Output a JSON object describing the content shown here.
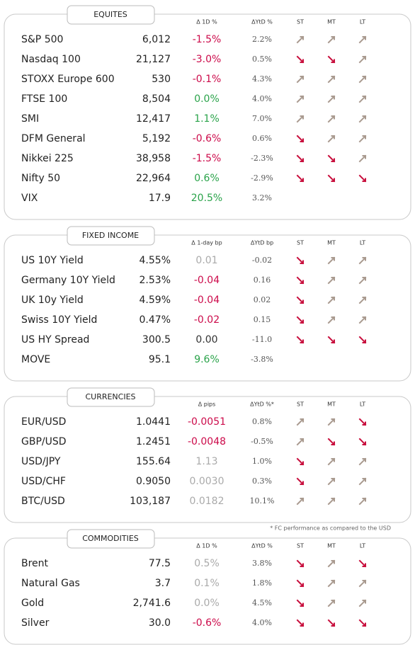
{
  "sections": [
    {
      "title": "EQUITES",
      "headers": [
        "Δ 1D %",
        "ΔYtD %",
        "ST",
        "MT",
        "LT"
      ],
      "rows": [
        {
          "name": "S&P 500",
          "value": "6,012",
          "change": "-1.5%",
          "ytd": "2.2%",
          "tone": "negative",
          "trend": [
            "up",
            "up",
            "up"
          ]
        },
        {
          "name": "Nasdaq 100",
          "value": "21,127",
          "change": "-3.0%",
          "ytd": "0.5%",
          "tone": "negative",
          "trend": [
            "down",
            "down",
            "up"
          ]
        },
        {
          "name": "STOXX Europe 600",
          "value": "530",
          "change": "-0.1%",
          "ytd": "4.3%",
          "tone": "negative",
          "trend": [
            "up",
            "up",
            "up"
          ]
        },
        {
          "name": "FTSE 100",
          "value": "8,504",
          "change": "0.0%",
          "ytd": "4.0%",
          "tone": "positive",
          "trend": [
            "up",
            "up",
            "up"
          ]
        },
        {
          "name": "SMI",
          "value": "12,417",
          "change": "1.1%",
          "ytd": "7.0%",
          "tone": "positive",
          "trend": [
            "up",
            "up",
            "up"
          ]
        },
        {
          "name": "DFM General",
          "value": "5,192",
          "change": "-0.6%",
          "ytd": "0.6%",
          "tone": "negative",
          "trend": [
            "down",
            "up",
            "up"
          ]
        },
        {
          "name": "Nikkei 225",
          "value": "38,958",
          "change": "-1.5%",
          "ytd": "-2.3%",
          "tone": "negative",
          "trend": [
            "down",
            "down",
            "up"
          ]
        },
        {
          "name": "Nifty  50",
          "value": "22,964",
          "change": "0.6%",
          "ytd": "-2.9%",
          "tone": "positive",
          "trend": [
            "down",
            "down",
            "down"
          ]
        },
        {
          "name": "VIX",
          "value": "17.9",
          "change": "20.5%",
          "ytd": "3.2%",
          "tone": "positive",
          "trend": [
            null,
            null,
            null
          ]
        }
      ]
    },
    {
      "title": "FIXED INCOME",
      "headers": [
        "Δ 1-day bp",
        "ΔYtD bp",
        "ST",
        "MT",
        "LT"
      ],
      "rows": [
        {
          "name": "US 10Y Yield",
          "value": "4.55%",
          "change": "0.01",
          "ytd": "-0.02",
          "tone": "neutral",
          "trend": [
            "down",
            "up",
            "up"
          ]
        },
        {
          "name": "Germany 10Y Yield",
          "value": "2.53%",
          "change": "-0.04",
          "ytd": "0.16",
          "tone": "negative",
          "trend": [
            "down",
            "up",
            "up"
          ]
        },
        {
          "name": "UK 10y Yield",
          "value": "4.59%",
          "change": "-0.04",
          "ytd": "0.02",
          "tone": "negative",
          "trend": [
            "down",
            "up",
            "up"
          ]
        },
        {
          "name": "Swiss 10Y Yield",
          "value": "0.47%",
          "change": "-0.02",
          "ytd": "0.15",
          "tone": "negative",
          "trend": [
            "down",
            "up",
            "up"
          ]
        },
        {
          "name": "US HY Spread",
          "value": "300.5",
          "change": "0.00",
          "ytd": "-11.0",
          "tone": "flat",
          "trend": [
            "down",
            "down",
            "down"
          ]
        },
        {
          "name": "MOVE",
          "value": "95.1",
          "change": "9.6%",
          "ytd": "-3.8%",
          "tone": "positive",
          "trend": [
            null,
            null,
            null
          ]
        }
      ]
    },
    {
      "title": "CURRENCIES",
      "headers": [
        "Δ pips",
        "ΔYtD %*",
        "ST",
        "MT",
        "LT"
      ],
      "rows": [
        {
          "name": "EUR/USD",
          "value": "1.0441",
          "change": "-0.0051",
          "ytd": "0.8%",
          "tone": "negative",
          "trend": [
            "up",
            "up",
            "down"
          ]
        },
        {
          "name": "GBP/USD",
          "value": "1.2451",
          "change": "-0.0048",
          "ytd": "-0.5%",
          "tone": "negative",
          "trend": [
            "up",
            "down",
            "down"
          ]
        },
        {
          "name": "USD/JPY",
          "value": "155.64",
          "change": "1.13",
          "ytd": "1.0%",
          "tone": "neutral",
          "trend": [
            "down",
            "up",
            "up"
          ]
        },
        {
          "name": "USD/CHF",
          "value": "0.9050",
          "change": "0.0030",
          "ytd": "0.3%",
          "tone": "neutral",
          "trend": [
            "down",
            "up",
            "up"
          ]
        },
        {
          "name": "BTC/USD",
          "value": "103,187",
          "change": "0.0182",
          "ytd": "10.1%",
          "tone": "neutral",
          "trend": [
            "up",
            "up",
            "up"
          ]
        }
      ]
    },
    {
      "title": "COMMODITIES",
      "headers": [
        "Δ 1D %",
        "ΔYtD %",
        "ST",
        "MT",
        "LT"
      ],
      "rows": [
        {
          "name": "Brent",
          "value": "77.5",
          "change": "0.5%",
          "ytd": "3.8%",
          "tone": "neutral",
          "trend": [
            "down",
            "up",
            "down"
          ]
        },
        {
          "name": "Natural Gas",
          "value": "3.7",
          "change": "0.1%",
          "ytd": "1.8%",
          "tone": "neutral",
          "trend": [
            "down",
            "up",
            "up"
          ]
        },
        {
          "name": "Gold",
          "value": "2,741.6",
          "change": "0.0%",
          "ytd": "4.5%",
          "tone": "neutral",
          "trend": [
            "down",
            "up",
            "up"
          ]
        },
        {
          "name": "Silver",
          "value": "30.0",
          "change": "-0.6%",
          "ytd": "4.0%",
          "tone": "negative",
          "trend": [
            "down",
            "down",
            "down"
          ]
        }
      ]
    }
  ],
  "footnote": "* FC performance as compared to the USD"
}
